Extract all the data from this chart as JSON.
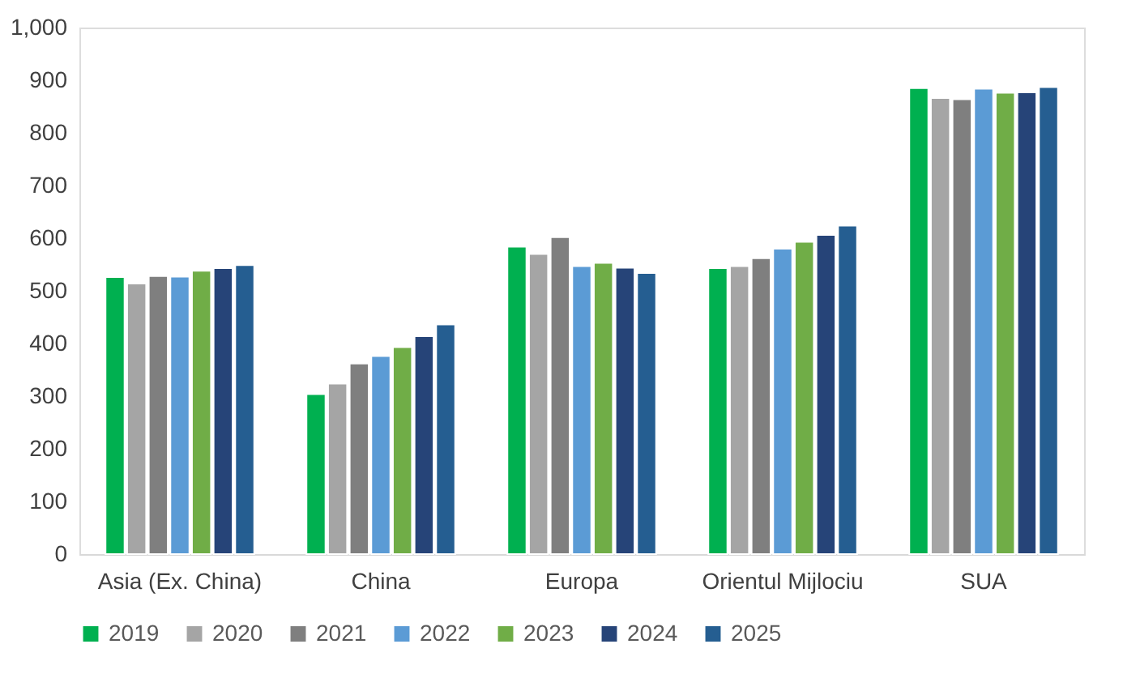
{
  "chart_data": {
    "type": "bar",
    "categories": [
      "Asia (Ex. China)",
      "China",
      "Europa",
      "Orientul Mijlociu",
      "SUA"
    ],
    "series": [
      {
        "name": "2019",
        "color": "#00b050",
        "values": [
          526,
          304,
          584,
          543,
          885
        ]
      },
      {
        "name": "2020",
        "color": "#a5a5a5",
        "values": [
          514,
          324,
          570,
          547,
          866
        ]
      },
      {
        "name": "2021",
        "color": "#7f7f7f",
        "values": [
          528,
          362,
          602,
          562,
          864
        ]
      },
      {
        "name": "2022",
        "color": "#5b9bd5",
        "values": [
          527,
          376,
          547,
          580,
          884
        ]
      },
      {
        "name": "2023",
        "color": "#70ad47",
        "values": [
          538,
          393,
          553,
          593,
          876
        ]
      },
      {
        "name": "2024",
        "color": "#264478",
        "values": [
          543,
          414,
          544,
          606,
          877
        ]
      },
      {
        "name": "2025",
        "color": "#255e91",
        "values": [
          549,
          436,
          534,
          624,
          887
        ]
      }
    ],
    "ylim": [
      0,
      1000
    ],
    "yticks": [
      0,
      100,
      200,
      300,
      400,
      500,
      600,
      700,
      800,
      900,
      {
        "value": 1000,
        "label": "1,000"
      }
    ],
    "grid": false,
    "legend": "bottom"
  }
}
